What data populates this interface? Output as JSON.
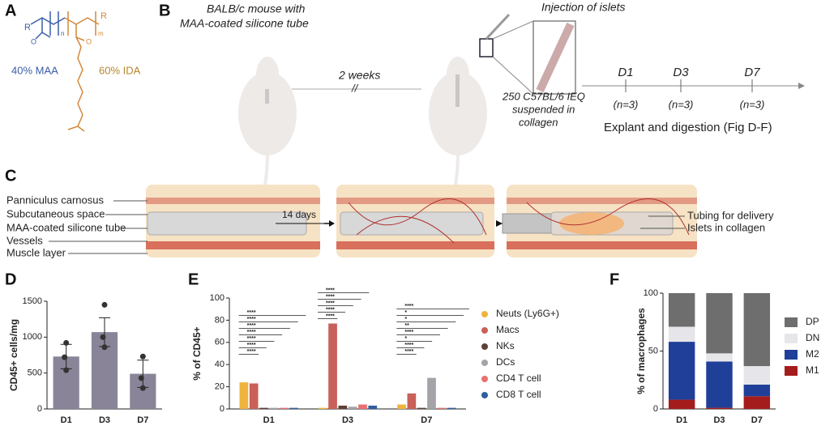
{
  "panels": {
    "a": "A",
    "b": "B",
    "c": "C",
    "d": "D",
    "e": "E",
    "f": "F"
  },
  "panel_a": {
    "structure_labels": [
      "R",
      "n",
      "m",
      "R",
      "O",
      "O"
    ],
    "maa": "40% MAA",
    "ida": "60% IDA"
  },
  "panel_b": {
    "title_lines": [
      "BALB/c mouse with",
      "MAA-coated silicone tube"
    ],
    "interval": "2 weeks",
    "break": "//",
    "injection": "Injection of islets",
    "dose_lines": [
      "250 C57BL/6 IEQ",
      "suspended in",
      "collagen"
    ],
    "timeline": [
      {
        "day": "D1",
        "n": "(n=3)"
      },
      {
        "day": "D3",
        "n": "(n=3)"
      },
      {
        "day": "D7",
        "n": "(n=3)"
      }
    ],
    "explant": "Explant and digestion (Fig D-F)"
  },
  "panel_c": {
    "labels": [
      "Panniculus carnosus",
      "Subcutaneous space",
      "MAA-coated silicone tube",
      "Vessels",
      "Muscle layer"
    ],
    "interval": "14 days",
    "right_labels": [
      "Tubing for delivery",
      "Islets in collagen"
    ]
  },
  "chart_data": [
    {
      "type": "bar",
      "ylabel": "CD45+ cells/mg",
      "categories": [
        "D1",
        "D3",
        "D7"
      ],
      "values": [
        730,
        1070,
        490
      ],
      "errors": [
        170,
        200,
        190
      ],
      "points": [
        [
          920,
          720,
          540
        ],
        [
          1450,
          1000,
          860
        ],
        [
          730,
          430,
          290
        ]
      ],
      "color": "#8a8499",
      "ylim": [
        0,
        1500
      ],
      "yticks": [
        0,
        500,
        1000,
        1500
      ]
    },
    {
      "type": "grouped_bar",
      "ylabel": "% of CD45+",
      "categories": [
        "D1",
        "D3",
        "D7"
      ],
      "series": [
        {
          "name": "Neuts (Ly6G+)",
          "color": "#f0b43c",
          "values": [
            24,
            1,
            4
          ]
        },
        {
          "name": "Macs",
          "color": "#c9605a",
          "values": [
            23,
            77,
            14
          ]
        },
        {
          "name": "NKs",
          "color": "#5e4036",
          "values": [
            1,
            3,
            1
          ]
        },
        {
          "name": "DCs",
          "color": "#a3a3a8",
          "values": [
            1,
            2,
            28
          ]
        },
        {
          "name": "CD4 T cell",
          "color": "#e8706e",
          "values": [
            1,
            4,
            1
          ]
        },
        {
          "name": "CD8 T cell",
          "color": "#2e5fa0",
          "values": [
            1,
            3,
            1
          ]
        }
      ],
      "significance": [
        [
          "****",
          "****",
          "****",
          "****",
          "****",
          "****",
          "****"
        ],
        [
          "****",
          "****",
          "****",
          "****",
          "****"
        ],
        [
          "****",
          "****",
          "*",
          "****",
          "**",
          "*",
          "*",
          "****"
        ]
      ],
      "ylim": [
        0,
        100
      ],
      "yticks": [
        0,
        20,
        40,
        60,
        80,
        100
      ]
    },
    {
      "type": "stacked_bar",
      "ylabel": "% of macrophages",
      "categories": [
        "D1",
        "D3",
        "D7"
      ],
      "series": [
        {
          "name": "M1",
          "color": "#a51c1c",
          "values": [
            8,
            1,
            11
          ]
        },
        {
          "name": "M2",
          "color": "#1f3f99",
          "values": [
            50,
            40,
            10
          ]
        },
        {
          "name": "DN",
          "color": "#e6e6ea",
          "values": [
            13,
            7,
            16
          ]
        },
        {
          "name": "DP",
          "color": "#6e6e6e",
          "values": [
            29,
            52,
            63
          ]
        }
      ],
      "ylim": [
        0,
        100
      ],
      "yticks": [
        0,
        50,
        100
      ]
    }
  ]
}
